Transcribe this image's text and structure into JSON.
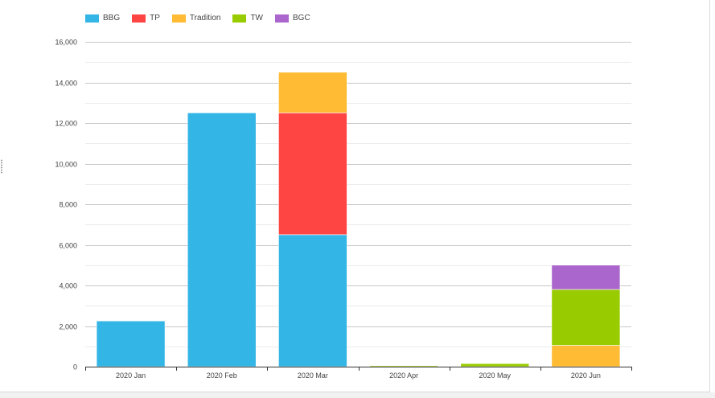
{
  "legend": {
    "items": [
      {
        "name": "BBG",
        "color": "#33b5e5"
      },
      {
        "name": "TP",
        "color": "#ff4444"
      },
      {
        "name": "Tradition",
        "color": "#ffbb33"
      },
      {
        "name": "TW",
        "color": "#99cc00"
      },
      {
        "name": "BGC",
        "color": "#aa66cc"
      }
    ]
  },
  "chart_data": {
    "type": "bar",
    "stacked": true,
    "categories": [
      "2020 Jan",
      "2020 Feb",
      "2020 Mar",
      "2020 Apr",
      "2020 May",
      "2020 Jun"
    ],
    "series": [
      {
        "name": "BBG",
        "color": "#33b5e5",
        "values": [
          2250,
          12500,
          6500,
          0,
          0,
          0
        ]
      },
      {
        "name": "TP",
        "color": "#ff4444",
        "values": [
          0,
          0,
          6000,
          0,
          0,
          0
        ]
      },
      {
        "name": "Tradition",
        "color": "#ffbb33",
        "values": [
          0,
          0,
          2000,
          0,
          0,
          1050
        ]
      },
      {
        "name": "TW",
        "color": "#99cc00",
        "values": [
          0,
          0,
          0,
          50,
          150,
          2750
        ]
      },
      {
        "name": "BGC",
        "color": "#aa66cc",
        "values": [
          0,
          0,
          0,
          0,
          0,
          1200
        ]
      }
    ],
    "y_ticks": [
      "0",
      "2,000",
      "4,000",
      "6,000",
      "8,000",
      "10,000",
      "12,000",
      "14,000",
      "16,000"
    ],
    "ylim": [
      0,
      16000
    ],
    "grid": true,
    "legend_position": "top-left",
    "xlabel": "",
    "ylabel": ""
  }
}
